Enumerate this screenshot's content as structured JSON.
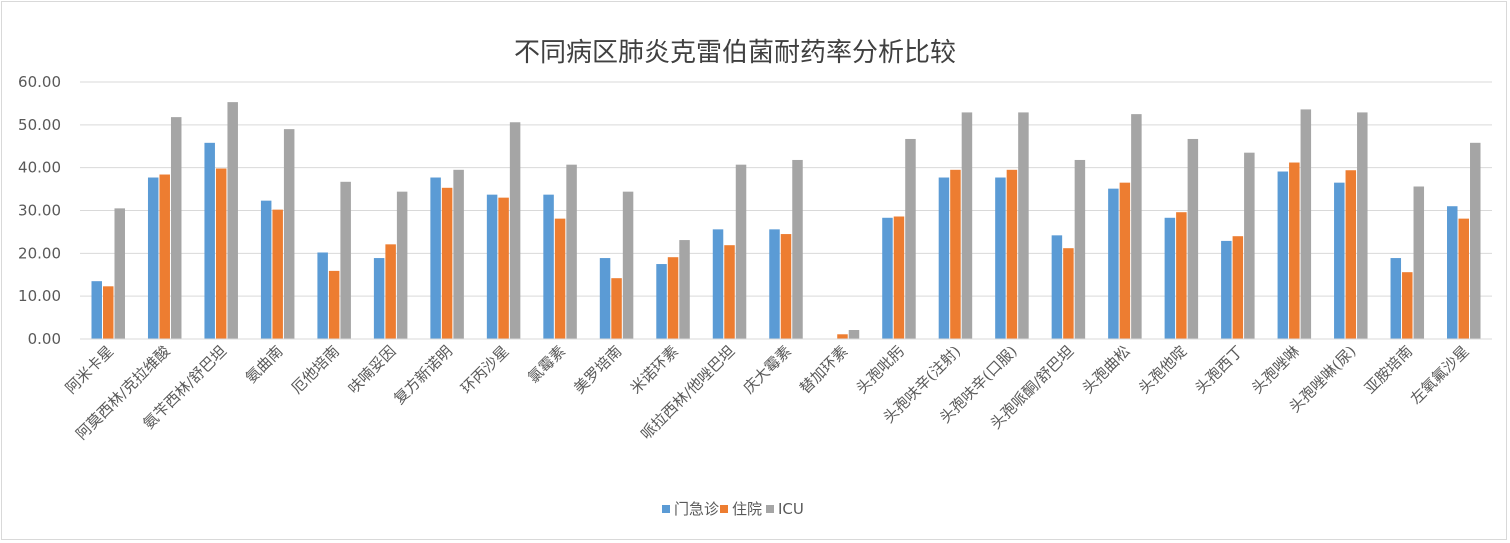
{
  "chart_data": {
    "type": "bar",
    "title": "不同病区肺炎克雷伯菌耐药率分析比较",
    "xlabel": "",
    "ylabel": "",
    "ylim": [
      0,
      60
    ],
    "yticks": [
      "0.00",
      "10.00",
      "20.00",
      "30.00",
      "40.00",
      "50.00",
      "60.00"
    ],
    "grid": true,
    "legend_position": "bottom",
    "categories": [
      "阿米卡星",
      "阿莫西林/克拉维酸",
      "氨苄西林/舒巴坦",
      "氨曲南",
      "厄他培南",
      "呋喃妥因",
      "复方新诺明",
      "环丙沙星",
      "氯霉素",
      "美罗培南",
      "米诺环素",
      "哌拉西林/他唑巴坦",
      "庆大霉素",
      "替加环素",
      "头孢吡肟",
      "头孢呋辛(注射)",
      "头孢呋辛(口服)",
      "头孢哌酮/舒巴坦",
      "头孢曲松",
      "头孢他啶",
      "头孢西丁",
      "头孢唑啉",
      "头孢唑啉(尿)",
      "亚胺培南",
      "左氧氟沙星"
    ],
    "series": [
      {
        "name": "门急诊",
        "color": "#5b9bd5",
        "values": [
          13.5,
          37.7,
          45.8,
          32.3,
          20.2,
          18.9,
          37.7,
          33.7,
          33.7,
          18.9,
          17.5,
          25.6,
          25.6,
          0,
          28.3,
          37.7,
          37.7,
          24.2,
          35.1,
          28.3,
          22.9,
          39.1,
          36.5,
          18.9,
          31.0
        ]
      },
      {
        "name": "住院",
        "color": "#ed7d31",
        "values": [
          12.3,
          38.4,
          39.8,
          30.2,
          15.9,
          22.1,
          35.3,
          33.0,
          28.1,
          14.2,
          19.1,
          21.9,
          24.5,
          1.1,
          28.6,
          39.5,
          39.5,
          21.2,
          36.5,
          29.6,
          24.0,
          41.2,
          39.4,
          15.6,
          28.1
        ]
      },
      {
        "name": "ICU",
        "color": "#a5a5a5",
        "values": [
          30.5,
          51.8,
          55.3,
          49.0,
          36.7,
          34.4,
          39.5,
          50.6,
          40.7,
          34.4,
          23.1,
          40.7,
          41.8,
          2.1,
          46.7,
          52.9,
          52.9,
          41.8,
          52.5,
          46.7,
          43.5,
          53.6,
          52.9,
          35.6,
          45.8
        ]
      }
    ],
    "colors": {
      "grid": "#d9d9d9",
      "axis": "#d9d9d9",
      "text": "#595959",
      "title": "#404040"
    }
  }
}
